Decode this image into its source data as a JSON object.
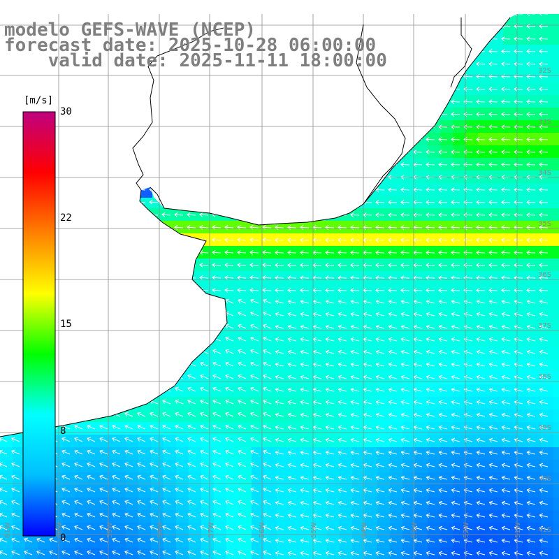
{
  "header": {
    "model_line": "modelo GEFS-WAVE (NCEP)",
    "forecast_line": "forecast date: 2025-10-28 06:00:00",
    "valid_line": "    valid date: 2025-11-11 18:00:00"
  },
  "colorbar": {
    "unit": "[m/s]",
    "tick_labels": [
      "30",
      "22",
      "15",
      "8",
      "0"
    ],
    "tick_values": [
      30,
      22,
      15,
      8,
      0
    ],
    "range": [
      0,
      30
    ],
    "colors": [
      "#0000ff",
      "#00bfff",
      "#00ffff",
      "#00ff00",
      "#ffff00",
      "#ff8000",
      "#ff0000",
      "#c00080"
    ]
  },
  "map": {
    "latitude_labels": [
      "32S",
      "33S",
      "34S",
      "35S",
      "36S",
      "37S",
      "38S",
      "39S",
      "40S",
      "41S"
    ],
    "longitude_labels": [
      "61W",
      "60W",
      "59W",
      "58W",
      "57W",
      "56W",
      "55W",
      "54W",
      "53W",
      "52W",
      "51W"
    ],
    "land_color": "#ffffff",
    "coast_color": "#000000",
    "grid_color": "#8c8c8c",
    "arrow_color": "#ffffff",
    "prevailing_wind": "from east"
  }
}
